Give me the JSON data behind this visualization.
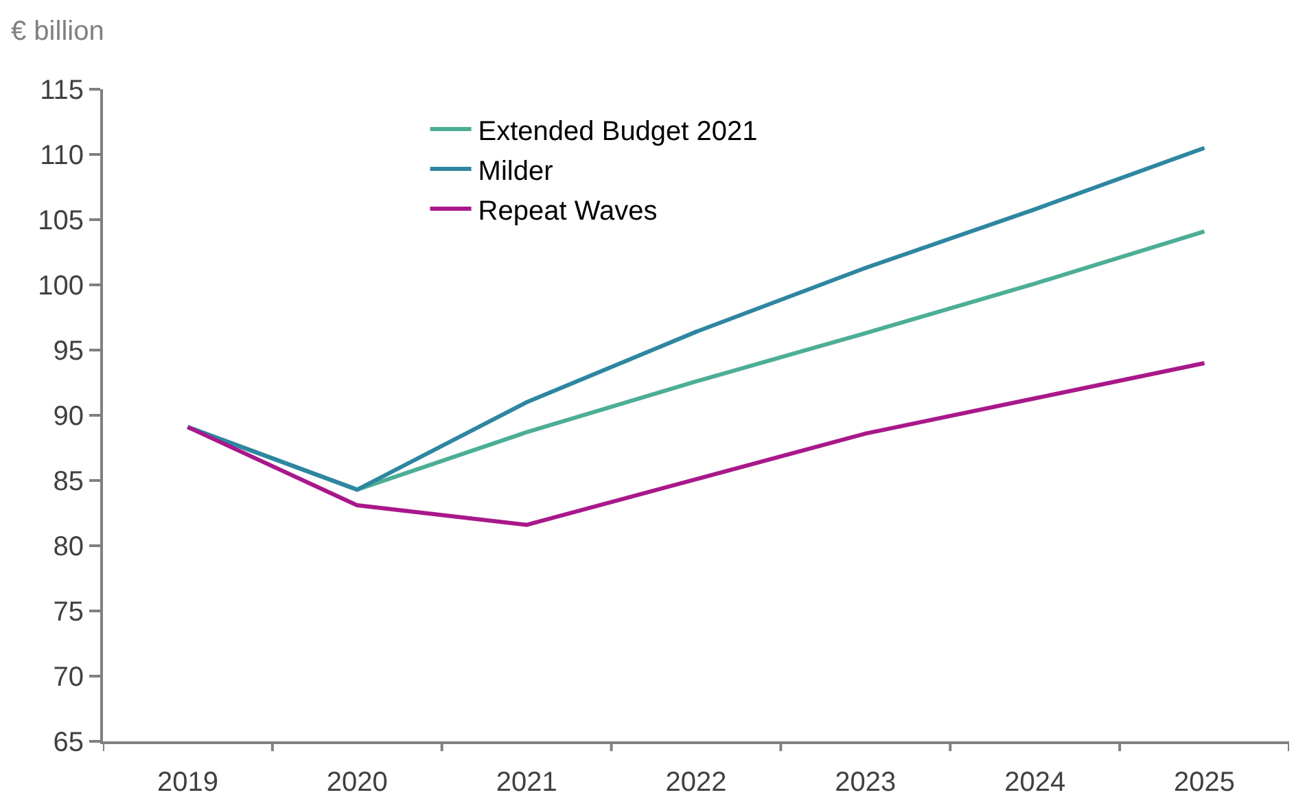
{
  "chart_data": {
    "type": "line",
    "ylabel": "€ billion",
    "categories": [
      "2019",
      "2020",
      "2021",
      "2022",
      "2023",
      "2024",
      "2025"
    ],
    "series": [
      {
        "name": "Extended Budget 2021",
        "color": "#4cae96",
        "values": [
          89.1,
          84.3,
          88.7,
          92.6,
          96.3,
          100.1,
          104.1
        ]
      },
      {
        "name": "Milder",
        "color": "#2e86a0",
        "values": [
          89.1,
          84.3,
          91.0,
          96.4,
          101.3,
          105.8,
          110.5
        ]
      },
      {
        "name": "Repeat Waves",
        "color": "#a8188a",
        "values": [
          89.1,
          83.1,
          81.6,
          85.1,
          88.6,
          91.3,
          94.0
        ]
      }
    ],
    "ylim": [
      65,
      115
    ],
    "yticks": [
      65,
      70,
      75,
      80,
      85,
      90,
      95,
      100,
      105,
      110,
      115
    ],
    "legend": "top left",
    "marker": "none",
    "line_style": "solid"
  }
}
